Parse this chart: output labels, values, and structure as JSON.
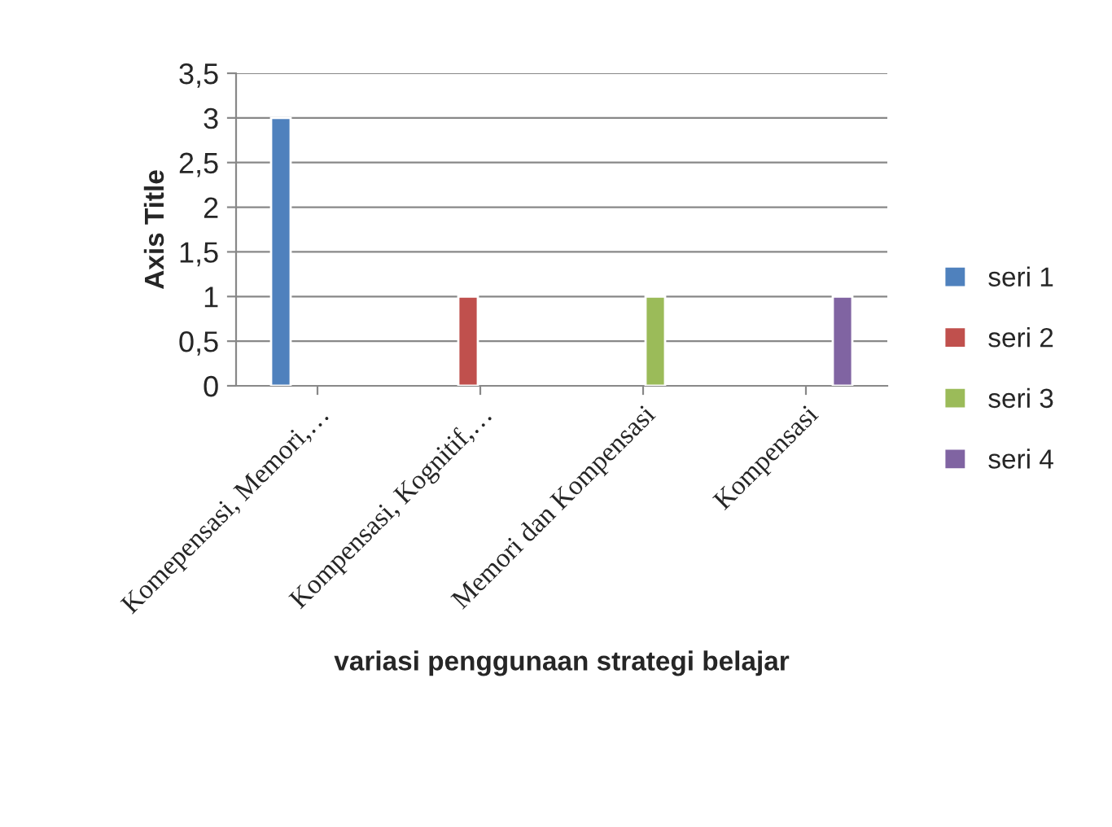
{
  "chart_data": {
    "type": "bar",
    "xlabel": "variasi penggunaan strategi belajar",
    "ylabel": "Axis Title",
    "categories": [
      "Komepensasi, Memori,…",
      "Kompensasi, Kognitif,…",
      "Memori dan Kompensasi",
      "Kompensasi"
    ],
    "series": [
      {
        "name": "seri 1",
        "color": "#4f81bd",
        "values": [
          3,
          null,
          null,
          null
        ]
      },
      {
        "name": "seri 2",
        "color": "#c0504d",
        "values": [
          null,
          1,
          null,
          null
        ]
      },
      {
        "name": "seri 3",
        "color": "#9bbb59",
        "values": [
          null,
          null,
          1,
          null
        ]
      },
      {
        "name": "seri 4",
        "color": "#8064a2",
        "values": [
          null,
          null,
          null,
          1
        ]
      }
    ],
    "ylim": [
      0,
      3.5
    ],
    "yticks": [
      0,
      {
        "value": 0.5,
        "label": "0,5"
      },
      1,
      {
        "value": 1.5,
        "label": "1,5"
      },
      2,
      {
        "value": 2.5,
        "label": "2,5"
      },
      3,
      {
        "value": 3.5,
        "label": "3,5"
      }
    ],
    "grid": "y",
    "legend": "right"
  }
}
